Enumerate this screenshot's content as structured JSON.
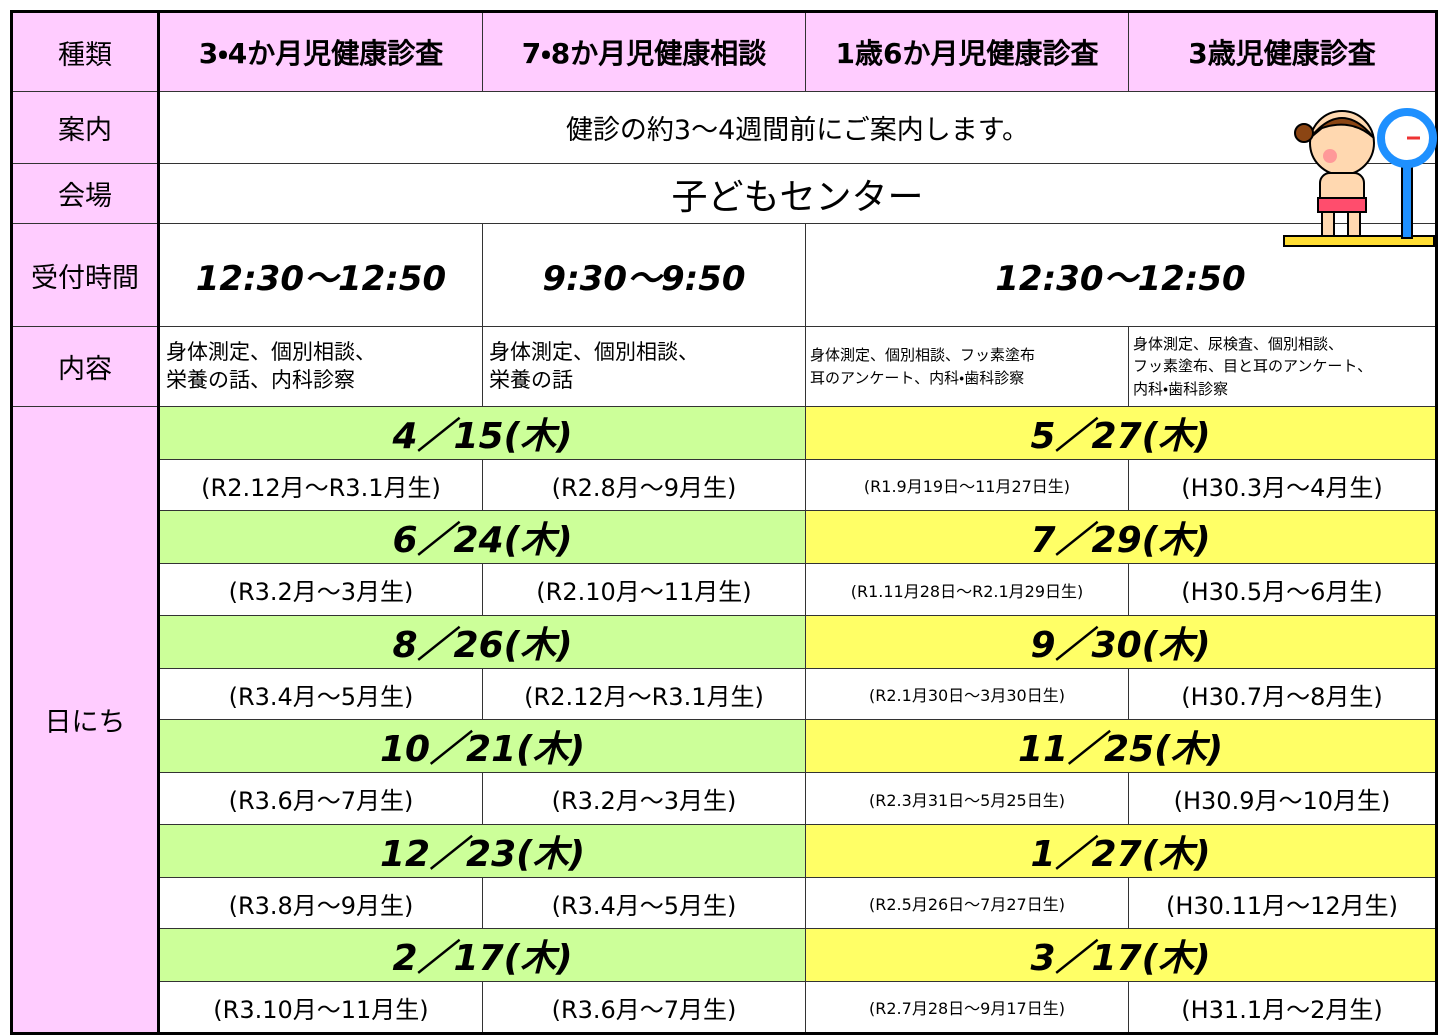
{
  "header": {
    "label": "種類",
    "columns": [
      "3・4か月児健康診査",
      "7・8か月児健康相談",
      "1歳6か月児健康診査",
      "3歳児健康診査"
    ]
  },
  "guide": {
    "label": "案内",
    "text": "健診の約3～4週間前にご案内します。"
  },
  "venue": {
    "label": "会場",
    "text": "子どもセンター"
  },
  "reception": {
    "label": "受付時間",
    "times": [
      "12:30～12:50",
      "9:30～9:50",
      "12:30～12:50"
    ]
  },
  "contents": {
    "label": "内容",
    "cells": [
      [
        "身体測定、個別相談、",
        "栄養の話、内科診察"
      ],
      [
        "身体測定、個別相談、",
        "栄養の話"
      ],
      [
        "身体測定、個別相談、フッ素塗布",
        "耳のアンケート、内科・歯科診察"
      ],
      [
        "身体測定、尿検査、個別相談、",
        "フッ素塗布、目と耳のアンケート、",
        "内科・歯科診察"
      ]
    ]
  },
  "schedule": {
    "label": "日にち",
    "sessions": [
      {
        "dates": [
          "4／15(木)",
          "5／27(木)"
        ],
        "births": [
          "(R2.12月～R3.1月生)",
          "(R2.8月～9月生)",
          "(R1.9月19日～11月27日生)",
          "(H30.3月～4月生)"
        ]
      },
      {
        "dates": [
          "6／24(木)",
          "7／29(木)"
        ],
        "births": [
          "(R3.2月～3月生)",
          "(R2.10月～11月生)",
          "(R1.11月28日～R2.1月29日生)",
          "(H30.5月～6月生)"
        ]
      },
      {
        "dates": [
          "8／26(木)",
          "9／30(木)"
        ],
        "births": [
          "(R3.4月～5月生)",
          "(R2.12月～R3.1月生)",
          "(R2.1月30日～3月30日生)",
          "(H30.7月～8月生)"
        ]
      },
      {
        "dates": [
          "10／21(木)",
          "11／25(木)"
        ],
        "births": [
          "(R3.6月～7月生)",
          "(R3.2月～3月生)",
          "(R2.3月31日～5月25日生)",
          "(H30.9月～10月生)"
        ]
      },
      {
        "dates": [
          "12／23(木)",
          "1／27(木)"
        ],
        "births": [
          "(R3.8月～9月生)",
          "(R3.4月～5月生)",
          "(R2.5月26日～7月27日生)",
          "(H30.11月～12月生)"
        ]
      },
      {
        "dates": [
          "2／17(木)",
          "3／17(木)"
        ],
        "births": [
          "(R3.10月～11月生)",
          "(R3.6月～7月生)",
          "(R2.7月28日～9月17日生)",
          "(H31.1月～2月生)"
        ]
      }
    ]
  }
}
